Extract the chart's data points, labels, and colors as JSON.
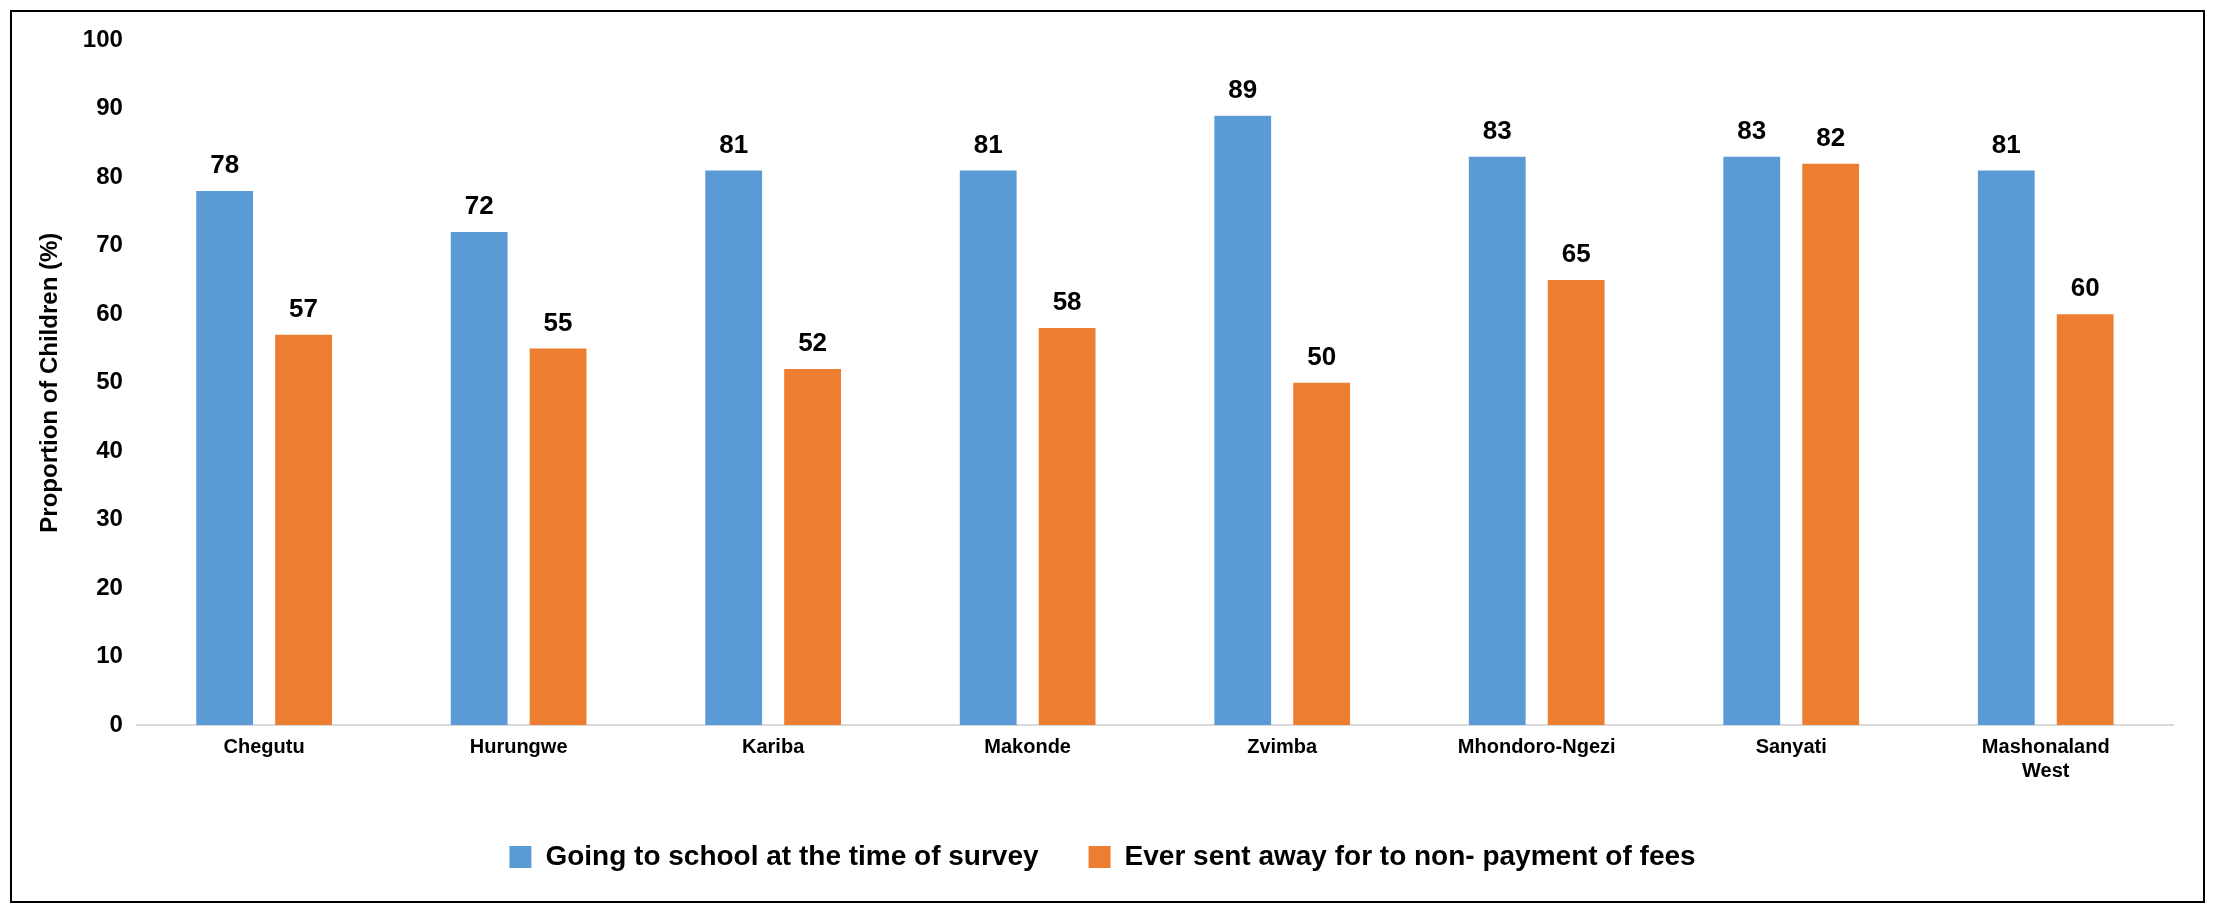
{
  "chart_data": {
    "type": "bar",
    "ylabel": "Proportion of Children (%)",
    "categories": [
      "Chegutu",
      "Hurungwe",
      "Kariba",
      "Makonde",
      "Zvimba",
      "Mhondoro-Ngezi",
      "Sanyati",
      "Mashonaland West"
    ],
    "series": [
      {
        "name": "Going to school at the time of survey",
        "color": "#5b9bd5",
        "values": [
          78,
          72,
          81,
          81,
          89,
          83,
          83,
          81
        ]
      },
      {
        "name": "Ever sent away for to non- payment of fees",
        "color": "#ed7d31",
        "values": [
          57,
          55,
          52,
          58,
          50,
          65,
          82,
          60
        ]
      }
    ],
    "ylim": [
      0,
      100
    ],
    "yticks": [
      0,
      10,
      20,
      30,
      40,
      50,
      60,
      70,
      80,
      90,
      100
    ],
    "grid": false,
    "legend": "bottom",
    "data_labels": true
  }
}
